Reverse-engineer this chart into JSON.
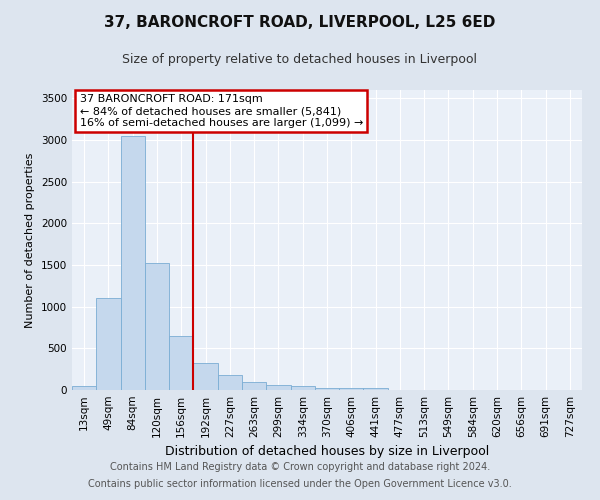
{
  "title1": "37, BARONCROFT ROAD, LIVERPOOL, L25 6ED",
  "title2": "Size of property relative to detached houses in Liverpool",
  "xlabel": "Distribution of detached houses by size in Liverpool",
  "ylabel": "Number of detached properties",
  "categories": [
    "13sqm",
    "49sqm",
    "84sqm",
    "120sqm",
    "156sqm",
    "192sqm",
    "227sqm",
    "263sqm",
    "299sqm",
    "334sqm",
    "370sqm",
    "406sqm",
    "441sqm",
    "477sqm",
    "513sqm",
    "549sqm",
    "584sqm",
    "620sqm",
    "656sqm",
    "691sqm",
    "727sqm"
  ],
  "values": [
    50,
    1100,
    3050,
    1520,
    650,
    330,
    175,
    100,
    65,
    45,
    30,
    20,
    30,
    5,
    3,
    2,
    2,
    1,
    1,
    1,
    0
  ],
  "bar_color": "#c5d8ed",
  "bar_edge_color": "#7aadd4",
  "vline_color": "#cc0000",
  "vline_x": 4.5,
  "annotation_line1": "37 BARONCROFT ROAD: 171sqm",
  "annotation_line2": "← 84% of detached houses are smaller (5,841)",
  "annotation_line3": "16% of semi-detached houses are larger (1,099) →",
  "annotation_box_color": "white",
  "annotation_box_edge_color": "#cc0000",
  "ylim": [
    0,
    3600
  ],
  "yticks": [
    0,
    500,
    1000,
    1500,
    2000,
    2500,
    3000,
    3500
  ],
  "bg_color": "#dde5ef",
  "plot_bg_color": "#eaf0f8",
  "grid_color": "#ffffff",
  "footer1": "Contains HM Land Registry data © Crown copyright and database right 2024.",
  "footer2": "Contains public sector information licensed under the Open Government Licence v3.0.",
  "title1_fontsize": 11,
  "title2_fontsize": 9,
  "xlabel_fontsize": 9,
  "ylabel_fontsize": 8,
  "tick_fontsize": 7.5,
  "footer_fontsize": 7,
  "annotation_fontsize": 8
}
